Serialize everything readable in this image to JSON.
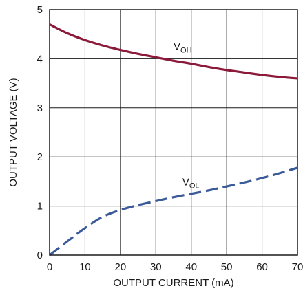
{
  "chart_data": {
    "type": "line",
    "xlabel": "OUTPUT CURRENT (mA)",
    "ylabel": "OUTPUT VOLTAGE (V)",
    "xlim": [
      0,
      70
    ],
    "ylim": [
      0,
      5
    ],
    "x_ticks": [
      "0",
      "10",
      "20",
      "30",
      "40",
      "50",
      "60",
      "70"
    ],
    "y_ticks": [
      "0",
      "1",
      "2",
      "3",
      "4",
      "5"
    ],
    "grid": true,
    "series": [
      {
        "name": "V",
        "subscript": "OH",
        "color": "#8b1a3a",
        "style": "solid",
        "x": [
          0,
          5,
          10,
          15,
          20,
          25,
          30,
          35,
          40,
          45,
          50,
          55,
          60,
          65,
          70
        ],
        "y": [
          4.7,
          4.52,
          4.38,
          4.27,
          4.18,
          4.1,
          4.03,
          3.96,
          3.9,
          3.83,
          3.77,
          3.72,
          3.67,
          3.63,
          3.6
        ]
      },
      {
        "name": "V",
        "subscript": "OL",
        "color": "#3a5a9a",
        "style": "dashed",
        "x": [
          0,
          5,
          10,
          15,
          20,
          25,
          30,
          35,
          40,
          45,
          50,
          55,
          60,
          65,
          70
        ],
        "y": [
          0.0,
          0.28,
          0.55,
          0.78,
          0.92,
          1.02,
          1.1,
          1.18,
          1.25,
          1.32,
          1.4,
          1.48,
          1.57,
          1.67,
          1.78
        ]
      }
    ]
  }
}
